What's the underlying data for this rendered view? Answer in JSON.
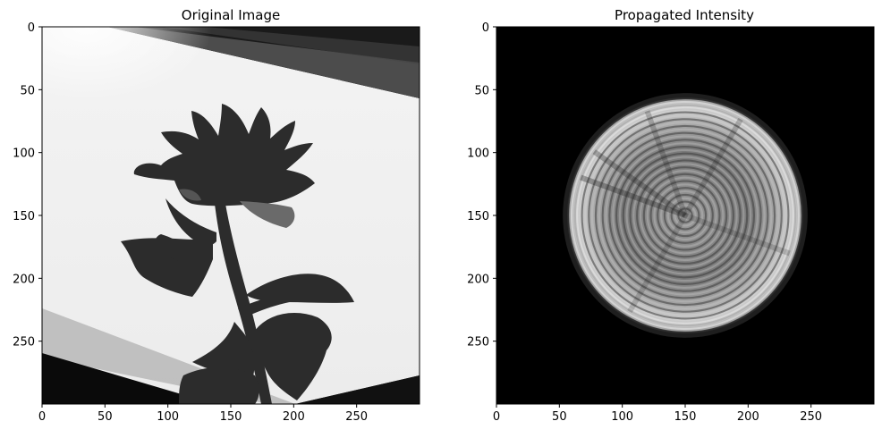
{
  "chart_data": [
    {
      "type": "image",
      "title": "Original Image",
      "xlim": [
        0,
        300
      ],
      "ylim": [
        300,
        0
      ],
      "x_ticks": [
        0,
        50,
        100,
        150,
        200,
        250
      ],
      "y_ticks": [
        0,
        50,
        100,
        150,
        200,
        250
      ],
      "colormap": "gray",
      "content": "grayscale photograph: dark flower silhouette on bright diagonal band"
    },
    {
      "type": "image",
      "title": "Propagated Intensity",
      "xlim": [
        0,
        300
      ],
      "ylim": [
        300,
        0
      ],
      "x_ticks": [
        0,
        50,
        100,
        150,
        200,
        250
      ],
      "y_ticks": [
        0,
        50,
        100,
        150,
        200,
        250
      ],
      "colormap": "gray",
      "content": "bright circular ring pattern with concentric fringes on black background",
      "circle_center": [
        150,
        150
      ],
      "circle_radius": 93
    }
  ],
  "colors": {
    "background": "#ffffff",
    "axis": "#000000",
    "image_black": "#000000",
    "image_white": "#f2f2f2"
  }
}
